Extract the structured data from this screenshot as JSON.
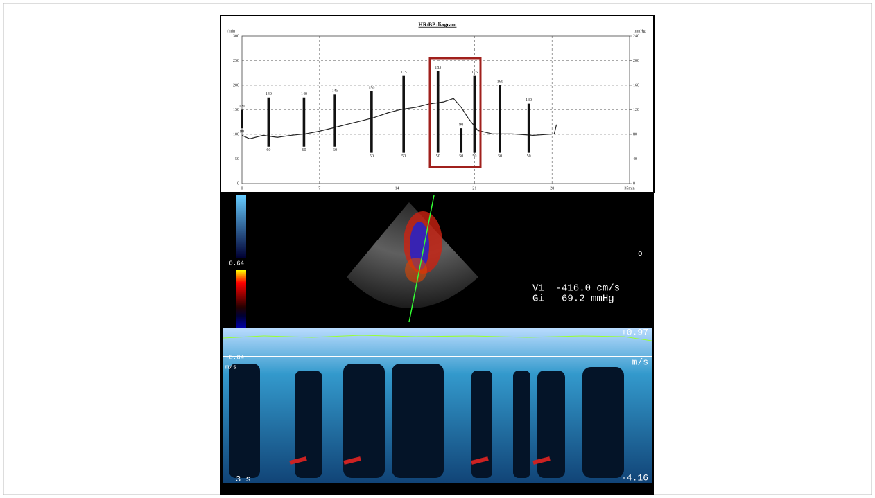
{
  "chart_data": {
    "type": "line",
    "title": "HR/BP diagram",
    "y_label": "/min",
    "y2_label": "mmHg",
    "xlim": [
      0,
      35
    ],
    "xticks": [
      0,
      7,
      14,
      21,
      28,
      {
        "value": 35,
        "label": "35min"
      }
    ],
    "ylim": [
      0,
      300
    ],
    "yticks": [
      0,
      50,
      100,
      150,
      200,
      250,
      300
    ],
    "y2lim": [
      0,
      240
    ],
    "y2ticks": [
      0,
      40,
      80,
      120,
      160,
      200,
      240
    ],
    "grid": true,
    "series": [
      {
        "color": "#222",
        "x": [
          0,
          0.7,
          1.9,
          3.2,
          4.4,
          5.7,
          6.9,
          8.2,
          9.4,
          10.7,
          11.9,
          13.2,
          14.4,
          15.7,
          16.9,
          18.2,
          19.1,
          19.8,
          20.4,
          21.3,
          22.6,
          24.4,
          26.3,
          28.2,
          28.4
        ],
        "values": [
          98,
          91,
          98,
          94,
          98,
          101,
          106,
          113,
          120,
          127,
          134,
          144,
          151,
          155,
          162,
          166,
          173,
          155,
          134,
          108,
          101,
          101,
          98,
          101,
          120
        ]
      }
    ],
    "bp_bars": {
      "axis": "y2",
      "color": "#111",
      "x": [
        0,
        2.4,
        5.6,
        8.4,
        11.7,
        14.6,
        17.7,
        19.8,
        21,
        23.3,
        25.9
      ],
      "systolic": [
        120,
        140,
        140,
        145,
        150,
        175,
        183,
        90,
        175,
        160,
        130
      ],
      "diastolic": [
        90,
        60,
        60,
        60,
        50,
        50,
        50,
        50,
        50,
        50,
        50
      ]
    }
  },
  "ultrasound": {
    "scale_top": "+0.64",
    "scale_bottom": "-0.64",
    "unit_left": "m/s",
    "measurements": [
      "V1  -416.0 cm/s",
      "Gi   69.2 mmHg"
    ],
    "depth_mark": "o",
    "baseline_label": "+0.97",
    "unit_right": "m/s",
    "min_label": "-4.16",
    "time_label": "3 s"
  }
}
